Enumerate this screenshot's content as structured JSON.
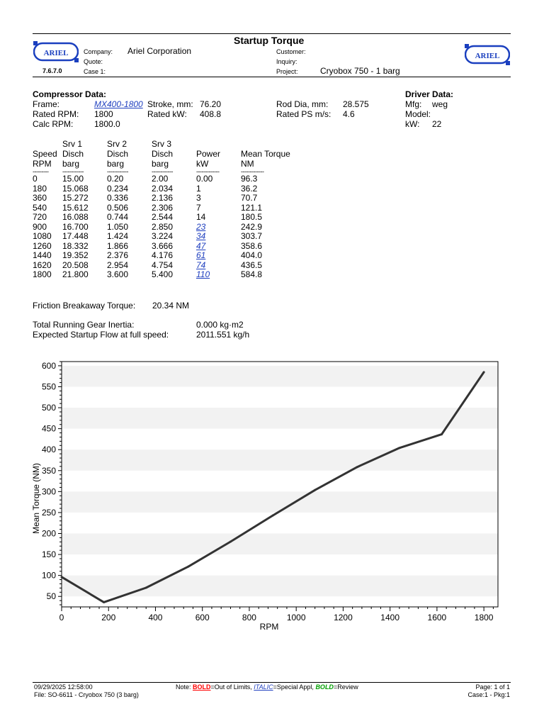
{
  "header": {
    "title": "Startup Torque",
    "logo_text": "ARIEL",
    "version": "7.6.7.0",
    "company_label": "Company:",
    "company": "Ariel Corporation",
    "quote_label": "Quote:",
    "case_label": "Case 1:",
    "customer_label": "Customer:",
    "inquiry_label": "Inquiry:",
    "project_label": "Project:",
    "project": "Cryobox 750 - 1 barg"
  },
  "compressor": {
    "heading": "Compressor Data:",
    "frame_label": "Frame:",
    "frame": "MX400-1800",
    "rated_rpm_label": "Rated RPM:",
    "rated_rpm": "1800",
    "calc_rpm_label": "Calc RPM:",
    "calc_rpm": "1800.0",
    "stroke_label": "Stroke, mm:",
    "stroke": "76.20",
    "rated_kw_label": "Rated kW:",
    "rated_kw": "408.8",
    "rod_dia_label": "Rod Dia, mm:",
    "rod_dia": "28.575",
    "rated_ps_label": "Rated PS m/s:",
    "rated_ps": "4.6"
  },
  "driver": {
    "heading": "Driver Data:",
    "mfg_label": "Mfg:",
    "mfg": "weg",
    "model_label": "Model:",
    "kw_label": "kW:",
    "kw": "22"
  },
  "table": {
    "headers": [
      [
        "",
        "Speed",
        "RPM"
      ],
      [
        "Srv 1",
        "Disch",
        "barg"
      ],
      [
        "Srv 2",
        "Disch",
        "barg"
      ],
      [
        "Srv 3",
        "Disch",
        "barg"
      ],
      [
        "",
        "Power",
        "kW"
      ],
      [
        "",
        "Mean Torque",
        "NM"
      ]
    ],
    "dashes": [
      "---------",
      "------------",
      "------------",
      "------------",
      "-------------",
      "-------------"
    ],
    "rows": [
      [
        "0",
        "15.00",
        "0.20",
        "2.00",
        "0.00",
        "96.3"
      ],
      [
        "180",
        "15.068",
        "0.234",
        "2.034",
        "1",
        "36.2"
      ],
      [
        "360",
        "15.272",
        "0.336",
        "2.136",
        "3",
        "70.7"
      ],
      [
        "540",
        "15.612",
        "0.506",
        "2.306",
        "7",
        "121.1"
      ],
      [
        "720",
        "16.088",
        "0.744",
        "2.544",
        "14",
        "180.5"
      ],
      [
        "900",
        "16.700",
        "1.050",
        "2.850",
        "23",
        "242.9"
      ],
      [
        "1080",
        "17.448",
        "1.424",
        "3.224",
        "34",
        "303.7"
      ],
      [
        "1260",
        "18.332",
        "1.866",
        "3.666",
        "47",
        "358.6"
      ],
      [
        "1440",
        "19.352",
        "2.376",
        "4.176",
        "61",
        "404.0"
      ],
      [
        "1620",
        "20.508",
        "2.954",
        "4.754",
        "74",
        "436.5"
      ],
      [
        "1800",
        "21.800",
        "3.600",
        "5.400",
        "110",
        "584.8"
      ]
    ],
    "italic_power_rows": [
      5,
      6,
      7,
      8,
      9,
      10
    ]
  },
  "friction": {
    "label": "Friction Breakaway Torque:",
    "value": "20.34 NM"
  },
  "inertia": {
    "label": "Total Running Gear Inertia:",
    "value": "0.000 kg·m2"
  },
  "flow": {
    "label": "Expected Startup Flow at full speed:",
    "value": "2011.551 kg/h"
  },
  "chart_data": {
    "type": "line",
    "title": "",
    "xlabel": "RPM",
    "ylabel": "Mean Torque (NM)",
    "x": [
      0,
      180,
      360,
      540,
      720,
      900,
      1080,
      1260,
      1440,
      1620,
      1800
    ],
    "series": [
      {
        "values": [
          96.3,
          36.2,
          70.7,
          121.1,
          180.5,
          242.9,
          303.7,
          358.6,
          404.0,
          436.5,
          584.8
        ]
      }
    ],
    "xlim": [
      0,
      1860
    ],
    "ylim": [
      25,
      610
    ],
    "xticks": [
      0,
      200,
      400,
      600,
      800,
      1000,
      1200,
      1400,
      1600,
      1800
    ],
    "yticks": [
      50,
      100,
      150,
      200,
      250,
      300,
      350,
      400,
      450,
      500,
      550,
      600
    ],
    "grid": "horizontal bands",
    "line_color": "#333333",
    "band_color": "#f2f2f2"
  },
  "footer": {
    "datetime": "09/29/2025 12:58:00",
    "file": "File: SO-6611 - Cryobox 750 (3 barg)",
    "note_prefix": "Note: ",
    "bold_label": "BOLD",
    "bold_text": "=Out of Limits, ",
    "italic_label": "ITALIC",
    "italic_text": "=Special Appl, ",
    "review_label": "BOLD",
    "review_text": "=Review",
    "page": "Page: 1 of 1",
    "case": "Case:1 - Pkg:1"
  },
  "colors": {
    "out_of_limits": "#ff0000",
    "special_appl": "#1f3fbf",
    "review": "#00a000"
  }
}
